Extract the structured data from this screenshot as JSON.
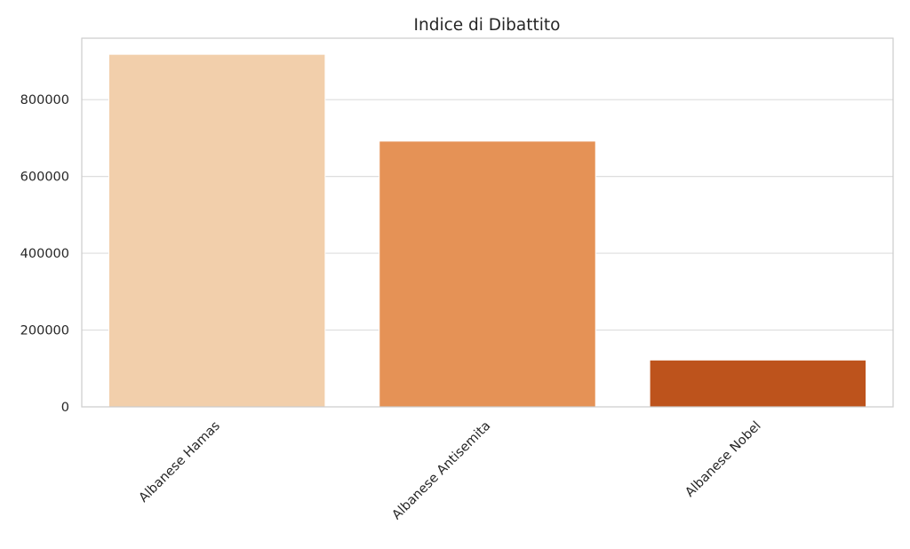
{
  "chart_data": {
    "type": "bar",
    "title": "Indice di Dibattito",
    "xlabel": "",
    "ylabel": "",
    "categories": [
      "Albanese Hamas",
      "Albanese Antisemita",
      "Albanese Nobel"
    ],
    "values": [
      918000,
      692000,
      122000
    ],
    "colors": [
      "#f2cfab",
      "#e59256",
      "#bd531c"
    ],
    "ylim": [
      0,
      960000
    ],
    "yticks": [
      0,
      200000,
      400000,
      600000,
      800000
    ],
    "grid": "y",
    "legend": "none"
  }
}
